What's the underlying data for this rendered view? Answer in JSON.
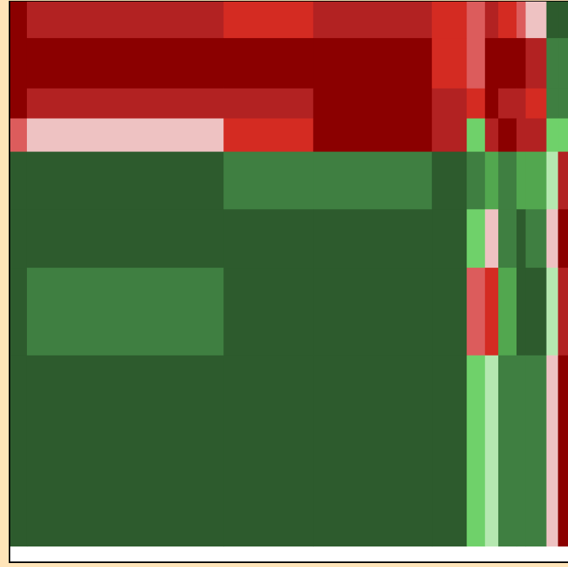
{
  "chart_data": {
    "type": "heatmap",
    "title": "",
    "xlabel": "",
    "ylabel": "",
    "value_range": [
      -1,
      1
    ],
    "colorscale": [
      {
        "value": -1.0,
        "color": "#8b0000"
      },
      {
        "value": -0.8,
        "color": "#b22222"
      },
      {
        "value": -0.6,
        "color": "#d42b22"
      },
      {
        "value": -0.4,
        "color": "#dc5c5c"
      },
      {
        "value": -0.2,
        "color": "#eec2c2"
      },
      {
        "value": 0.2,
        "color": "#b5e8b0"
      },
      {
        "value": 0.4,
        "color": "#6fd16a"
      },
      {
        "value": 0.6,
        "color": "#52a74f"
      },
      {
        "value": 0.8,
        "color": "#3f7f41"
      },
      {
        "value": 1.0,
        "color": "#2d5b2d"
      }
    ],
    "column_weights": [
      20,
      237,
      108,
      143,
      42,
      22,
      16,
      22,
      11,
      25,
      14,
      13
    ],
    "row_weights": [
      45,
      62,
      37,
      41,
      71,
      72,
      108,
      235,
      19
    ],
    "values": [
      [
        -1.0,
        -0.8,
        -0.6,
        -0.8,
        -0.6,
        -0.4,
        -0.8,
        -0.6,
        -0.4,
        -0.2,
        1.0,
        1.0
      ],
      [
        -1.0,
        -1.0,
        -1.0,
        -1.0,
        -0.6,
        -0.4,
        -1.0,
        -1.0,
        -1.0,
        -0.8,
        0.8,
        0.8
      ],
      [
        -1.0,
        -0.8,
        -0.8,
        -1.0,
        -0.8,
        -0.6,
        -1.0,
        -0.8,
        -0.8,
        -0.6,
        0.8,
        0.8
      ],
      [
        -0.4,
        -0.2,
        -0.6,
        -1.0,
        -0.8,
        0.4,
        -0.8,
        -1.0,
        -0.8,
        -0.8,
        0.4,
        0.4
      ],
      [
        1.0,
        1.0,
        0.8,
        0.8,
        1.0,
        0.8,
        0.6,
        0.8,
        0.6,
        0.6,
        0.2,
        -0.8
      ],
      [
        1.0,
        1.0,
        1.0,
        1.0,
        1.0,
        0.4,
        -0.2,
        0.8,
        1.0,
        0.8,
        -0.2,
        -1.0
      ],
      [
        1.0,
        0.8,
        1.0,
        1.0,
        1.0,
        -0.4,
        -0.6,
        0.6,
        1.0,
        1.0,
        0.2,
        -0.8
      ],
      [
        1.0,
        1.0,
        1.0,
        1.0,
        1.0,
        0.4,
        0.2,
        0.8,
        0.8,
        0.8,
        -0.2,
        -1.0
      ],
      [
        null,
        null,
        null,
        null,
        null,
        null,
        null,
        null,
        null,
        null,
        null,
        null
      ]
    ]
  }
}
